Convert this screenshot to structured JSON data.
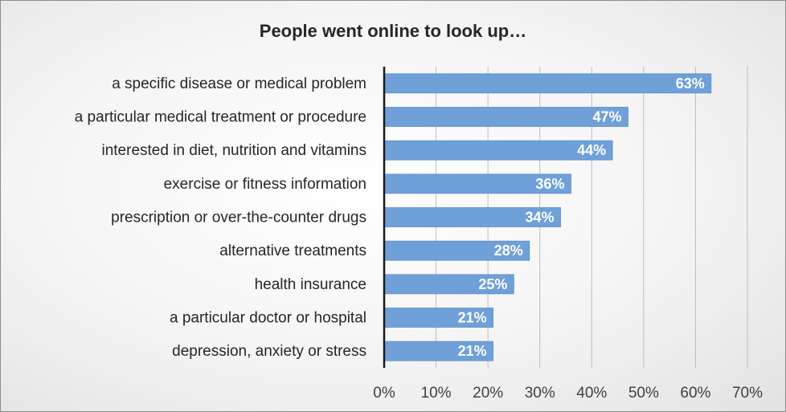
{
  "chart_data": {
    "type": "bar",
    "orientation": "horizontal",
    "title": "People went online to look up…",
    "xlabel": "",
    "ylabel": "",
    "categories": [
      "a specific disease or medical problem",
      "a particular medical treatment or procedure",
      "interested in diet, nutrition and vitamins",
      "exercise or fitness information",
      "prescription or over-the-counter drugs",
      "alternative treatments",
      "health insurance",
      "a particular doctor or hospital",
      "depression, anxiety or stress"
    ],
    "values": [
      63,
      47,
      44,
      36,
      34,
      28,
      25,
      21,
      21
    ],
    "data_labels": [
      "63%",
      "47%",
      "44%",
      "36%",
      "34%",
      "28%",
      "25%",
      "21%",
      "21%"
    ],
    "xlim": [
      0,
      70
    ],
    "xticks": [
      0,
      10,
      20,
      30,
      40,
      50,
      60,
      70
    ],
    "xtick_labels": [
      "0%",
      "10%",
      "20%",
      "30%",
      "40%",
      "50%",
      "60%",
      "70%"
    ],
    "grid": true,
    "legend": "none",
    "colors": {
      "bar": "#6fa0d8",
      "bar_edge": "#5b8fcf",
      "gridline": "#bdbdbd",
      "axis": "#1a1a1a"
    }
  }
}
